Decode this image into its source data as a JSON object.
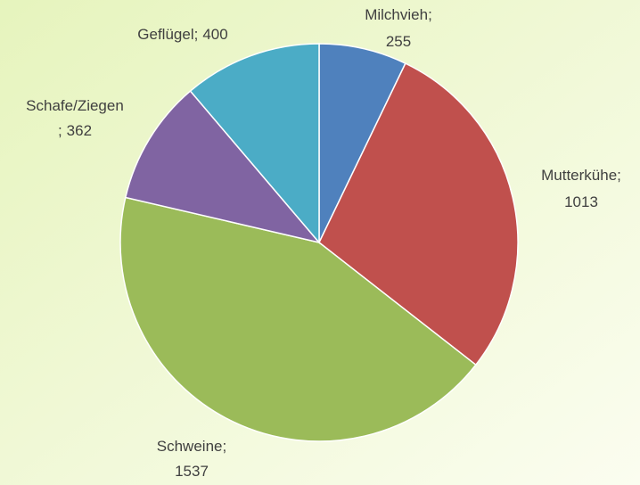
{
  "chart_data": {
    "type": "pie",
    "categories": [
      "Milchvieh",
      "Mutterkühe",
      "Schweine",
      "Schafe/Ziegen",
      "Geflügel"
    ],
    "values": [
      255,
      1013,
      1537,
      362,
      400
    ],
    "colors": [
      "#4f81bd",
      "#c0504d",
      "#9bbb59",
      "#8064a2",
      "#4bacc6"
    ],
    "label_separator": ";"
  }
}
